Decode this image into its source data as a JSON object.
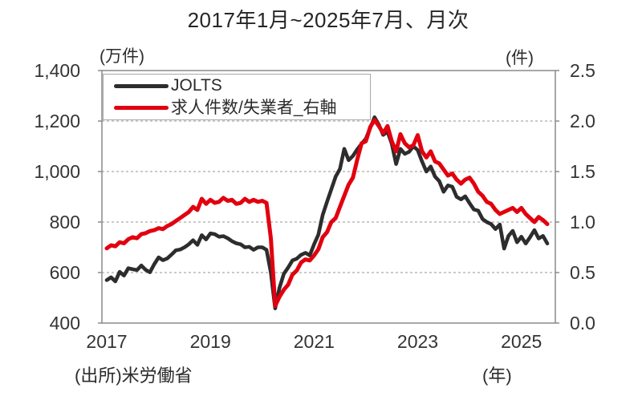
{
  "title": "2017年1月~2025年7月、月次",
  "axis_unit_left": "(万件)",
  "axis_unit_right": "(件)",
  "x_axis_unit": "(年)",
  "source": "(出所)米労働省",
  "legend": {
    "items": [
      {
        "label": "JOLTS",
        "color": "#2d2d2d"
      },
      {
        "label": "求人件数/失業者_右軸",
        "color": "#e2000f"
      }
    ]
  },
  "colors": {
    "jolts_line": "#2d2d2d",
    "ratio_line": "#e2000f",
    "gridline": "#ababab",
    "plot_border": "#8a8a8a",
    "text": "#262626"
  },
  "chart_data": {
    "type": "line",
    "title": "2017年1月~2025年7月、月次",
    "x": {
      "start": "2017-01",
      "end": "2025-07",
      "freq": "monthly",
      "count": 103
    },
    "x_tick_labels": [
      "2017",
      "2019",
      "2021",
      "2023",
      "2025"
    ],
    "x_tick_month_index": [
      0,
      24,
      48,
      72,
      96
    ],
    "ylabel_left": "(万件)",
    "ylabel_right": "(件)",
    "ylim_left": [
      400,
      1400
    ],
    "ylim_right": [
      0.0,
      2.5
    ],
    "ytick_values_left": [
      400,
      600,
      800,
      1000,
      1200,
      1400
    ],
    "ytick_labels_left": [
      "400",
      "600",
      "800",
      "1,000",
      "1,200",
      "1,400"
    ],
    "ytick_values_right": [
      0.0,
      0.5,
      1.0,
      1.5,
      2.0,
      2.5
    ],
    "ytick_labels_right": [
      "0.0",
      "0.5",
      "1.0",
      "1.5",
      "2.0",
      "2.5"
    ],
    "gridline_values_left": [
      600,
      800,
      1000,
      1200
    ],
    "grid": "dashed-horizontal",
    "legend_position": "top-left-inside",
    "series": [
      {
        "name": "JOLTS",
        "axis": "left",
        "color": "#2d2d2d",
        "values": [
          570,
          581,
          565,
          603,
          588,
          617,
          613,
          610,
          628,
          611,
          601,
          633,
          660,
          649,
          656,
          671,
          688,
          691,
          700,
          712,
          728,
          710,
          748,
          731,
          755,
          752,
          742,
          744,
          736,
          724,
          716,
          712,
          700,
          702,
          690,
          700,
          700,
          690,
          600,
          458,
          540,
          595,
          620,
          648,
          655,
          670,
          678,
          668,
          712,
          750,
          828,
          880,
          930,
          980,
          1010,
          1090,
          1045,
          1062,
          1088,
          1110,
          1130,
          1172,
          1215,
          1185,
          1145,
          1158,
          1110,
          1030,
          1090,
          1070,
          1078,
          1100,
          1085,
          1040,
          1000,
          1020,
          980,
          962,
          920,
          945,
          940,
          900,
          890,
          902,
          875,
          850,
          845,
          812,
          800,
          792,
          772,
          790,
          695,
          745,
          765,
          720,
          742,
          715,
          740,
          768,
          735,
          745,
          715
        ]
      },
      {
        "name": "求人件数/失業者_右軸",
        "axis": "right",
        "color": "#e2000f",
        "values": [
          0.74,
          0.77,
          0.76,
          0.8,
          0.79,
          0.83,
          0.85,
          0.84,
          0.88,
          0.89,
          0.91,
          0.92,
          0.94,
          0.93,
          0.96,
          0.98,
          1.01,
          1.04,
          1.07,
          1.1,
          1.15,
          1.12,
          1.23,
          1.18,
          1.22,
          1.19,
          1.2,
          1.24,
          1.21,
          1.22,
          1.18,
          1.19,
          1.23,
          1.2,
          1.22,
          1.2,
          1.21,
          1.19,
          0.84,
          0.17,
          0.26,
          0.33,
          0.38,
          0.48,
          0.52,
          0.6,
          0.63,
          0.62,
          0.67,
          0.73,
          0.85,
          0.9,
          1.0,
          1.04,
          1.15,
          1.26,
          1.37,
          1.44,
          1.62,
          1.78,
          1.8,
          1.94,
          2.01,
          1.95,
          1.88,
          1.95,
          1.8,
          1.7,
          1.87,
          1.78,
          1.74,
          1.76,
          1.86,
          1.7,
          1.64,
          1.7,
          1.6,
          1.58,
          1.52,
          1.46,
          1.48,
          1.42,
          1.38,
          1.42,
          1.44,
          1.38,
          1.3,
          1.26,
          1.2,
          1.18,
          1.12,
          1.08,
          1.1,
          1.12,
          1.14,
          1.1,
          1.14,
          1.08,
          1.04,
          1.0,
          1.05,
          1.02,
          0.98
        ]
      }
    ]
  }
}
